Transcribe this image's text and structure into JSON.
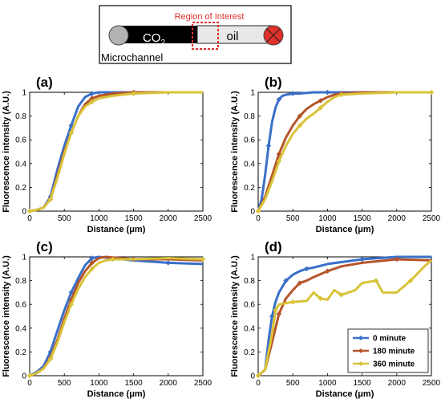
{
  "schematic": {
    "region_label": "Region of Interest",
    "gas_label": "CO",
    "gas_subscript": "2",
    "oil_label": "oil",
    "channel_label": "Microchannel"
  },
  "colors": {
    "s0": "#3a6fc9",
    "s180": "#b5552b",
    "s360": "#d9c33a",
    "roi": "#e0302a",
    "inlet": "#b3b3b3",
    "outlet": "#e0302a"
  },
  "chart_data": [
    {
      "panel": "(a)",
      "type": "line",
      "xlabel": "Distance (μm)",
      "ylabel": "Fluorescence intensity (A.U.)",
      "xlim": [
        0,
        2500
      ],
      "ylim": [
        0,
        1
      ],
      "xticks": [
        0,
        500,
        1000,
        1500,
        2000,
        2500
      ],
      "yticks": [
        0,
        0.2,
        0.4,
        0.6,
        0.8,
        1
      ],
      "series": [
        {
          "name": "0 minute",
          "color": "#3a6fc9",
          "x": [
            0,
            100,
            200,
            300,
            400,
            500,
            600,
            700,
            800,
            900,
            1000,
            1200,
            1500,
            2000,
            2500
          ],
          "y": [
            0,
            0.01,
            0.03,
            0.12,
            0.35,
            0.55,
            0.72,
            0.88,
            0.96,
            0.99,
            1,
            1,
            1,
            1,
            1
          ]
        },
        {
          "name": "180 minute",
          "color": "#b5552b",
          "x": [
            0,
            100,
            200,
            300,
            400,
            500,
            600,
            700,
            800,
            900,
            1000,
            1200,
            1500,
            2000,
            2500
          ],
          "y": [
            0,
            0.01,
            0.03,
            0.1,
            0.3,
            0.5,
            0.66,
            0.8,
            0.9,
            0.95,
            0.97,
            0.99,
            1,
            1,
            1
          ]
        },
        {
          "name": "360 minute",
          "color": "#d9c33a",
          "x": [
            0,
            100,
            200,
            300,
            400,
            500,
            600,
            700,
            800,
            900,
            1000,
            1200,
            1500,
            2000,
            2500
          ],
          "y": [
            0,
            0.01,
            0.03,
            0.1,
            0.28,
            0.48,
            0.66,
            0.8,
            0.88,
            0.92,
            0.95,
            0.97,
            0.99,
            1,
            1
          ]
        }
      ]
    },
    {
      "panel": "(b)",
      "type": "line",
      "xlabel": "Distance (μm)",
      "ylabel": "Fluorescence intensity (A.U.)",
      "xlim": [
        0,
        2500
      ],
      "ylim": [
        0,
        1
      ],
      "xticks": [
        0,
        500,
        1000,
        1500,
        2000,
        2500
      ],
      "yticks": [
        0,
        0.2,
        0.4,
        0.6,
        0.8,
        1
      ],
      "series": [
        {
          "name": "0 minute",
          "color": "#3a6fc9",
          "x": [
            0,
            50,
            100,
            150,
            200,
            250,
            300,
            350,
            400,
            500,
            600,
            800,
            1000,
            1500,
            2000,
            2500
          ],
          "y": [
            0,
            0.1,
            0.3,
            0.55,
            0.75,
            0.87,
            0.94,
            0.97,
            0.98,
            0.99,
            0.99,
            1,
            1,
            1,
            1,
            1
          ]
        },
        {
          "name": "180 minute",
          "color": "#b5552b",
          "x": [
            0,
            100,
            200,
            300,
            400,
            500,
            600,
            700,
            800,
            900,
            1000,
            1100,
            1200,
            1500,
            2000,
            2500
          ],
          "y": [
            0,
            0.12,
            0.3,
            0.48,
            0.62,
            0.72,
            0.8,
            0.86,
            0.9,
            0.93,
            0.96,
            0.98,
            0.99,
            1,
            1,
            1
          ]
        },
        {
          "name": "360 minute",
          "color": "#d9c33a",
          "x": [
            0,
            100,
            200,
            300,
            400,
            500,
            600,
            700,
            800,
            900,
            1000,
            1100,
            1200,
            1500,
            2000,
            2500
          ],
          "y": [
            0,
            0.1,
            0.25,
            0.42,
            0.55,
            0.65,
            0.72,
            0.78,
            0.82,
            0.87,
            0.92,
            0.96,
            0.98,
            0.99,
            1,
            1
          ]
        }
      ]
    },
    {
      "panel": "(c)",
      "type": "line",
      "xlabel": "Distance (μm)",
      "ylabel": "Fluorescence intensity (A.U.)",
      "xlim": [
        0,
        2500
      ],
      "ylim": [
        0,
        1
      ],
      "xticks": [
        0,
        500,
        1000,
        1500,
        2000,
        2500
      ],
      "yticks": [
        0,
        0.2,
        0.4,
        0.6,
        0.8,
        1
      ],
      "series": [
        {
          "name": "0 minute",
          "color": "#3a6fc9",
          "x": [
            0,
            100,
            200,
            300,
            400,
            500,
            600,
            700,
            800,
            900,
            1000,
            1500,
            2000,
            2500
          ],
          "y": [
            0,
            0.03,
            0.08,
            0.2,
            0.38,
            0.55,
            0.7,
            0.82,
            0.93,
            0.99,
            1,
            0.97,
            0.95,
            0.94
          ]
        },
        {
          "name": "180 minute",
          "color": "#b5552b",
          "x": [
            0,
            100,
            200,
            300,
            400,
            500,
            600,
            700,
            800,
            900,
            1000,
            1100,
            1500,
            2000,
            2500
          ],
          "y": [
            0,
            0.02,
            0.06,
            0.15,
            0.3,
            0.48,
            0.64,
            0.78,
            0.88,
            0.95,
            0.99,
            1,
            0.98,
            0.98,
            0.97
          ]
        },
        {
          "name": "360 minute",
          "color": "#d9c33a",
          "x": [
            0,
            100,
            200,
            300,
            400,
            500,
            600,
            700,
            800,
            900,
            1000,
            1100,
            1200,
            1500,
            2000,
            2500
          ],
          "y": [
            0,
            0.02,
            0.06,
            0.14,
            0.28,
            0.45,
            0.6,
            0.73,
            0.83,
            0.9,
            0.95,
            0.97,
            0.98,
            0.98,
            0.99,
            0.98
          ]
        }
      ]
    },
    {
      "panel": "(d)",
      "type": "line",
      "xlabel": "Distance (μm)",
      "ylabel": "Fluorescence intensity (A.U.)",
      "xlim": [
        0,
        2500
      ],
      "ylim": [
        0,
        1
      ],
      "xticks": [
        0,
        500,
        1000,
        1500,
        2000,
        2500
      ],
      "yticks": [
        0,
        0.2,
        0.4,
        0.6,
        0.8,
        1
      ],
      "legend": "bottom-right",
      "series": [
        {
          "name": "0 minute",
          "color": "#3a6fc9",
          "x": [
            0,
            100,
            150,
            200,
            250,
            300,
            400,
            500,
            600,
            700,
            800,
            1000,
            1500,
            2000,
            2500
          ],
          "y": [
            0,
            0.05,
            0.3,
            0.5,
            0.62,
            0.7,
            0.8,
            0.85,
            0.88,
            0.9,
            0.91,
            0.94,
            0.98,
            1,
            1
          ]
        },
        {
          "name": "180 minute",
          "color": "#b5552b",
          "x": [
            0,
            100,
            200,
            300,
            400,
            500,
            600,
            700,
            800,
            1000,
            1200,
            1500,
            2000,
            2500
          ],
          "y": [
            0,
            0.05,
            0.28,
            0.52,
            0.65,
            0.72,
            0.78,
            0.8,
            0.83,
            0.88,
            0.92,
            0.95,
            0.98,
            0.97
          ]
        },
        {
          "name": "360 minute",
          "color": "#d9c33a",
          "x": [
            0,
            100,
            200,
            250,
            300,
            400,
            500,
            700,
            800,
            900,
            1000,
            1100,
            1200,
            1400,
            1500,
            1700,
            1800,
            2000,
            2200,
            2400,
            2500
          ],
          "y": [
            0,
            0.05,
            0.35,
            0.55,
            0.6,
            0.61,
            0.62,
            0.63,
            0.7,
            0.65,
            0.64,
            0.72,
            0.68,
            0.72,
            0.78,
            0.8,
            0.7,
            0.7,
            0.8,
            0.92,
            0.97
          ]
        }
      ]
    }
  ]
}
